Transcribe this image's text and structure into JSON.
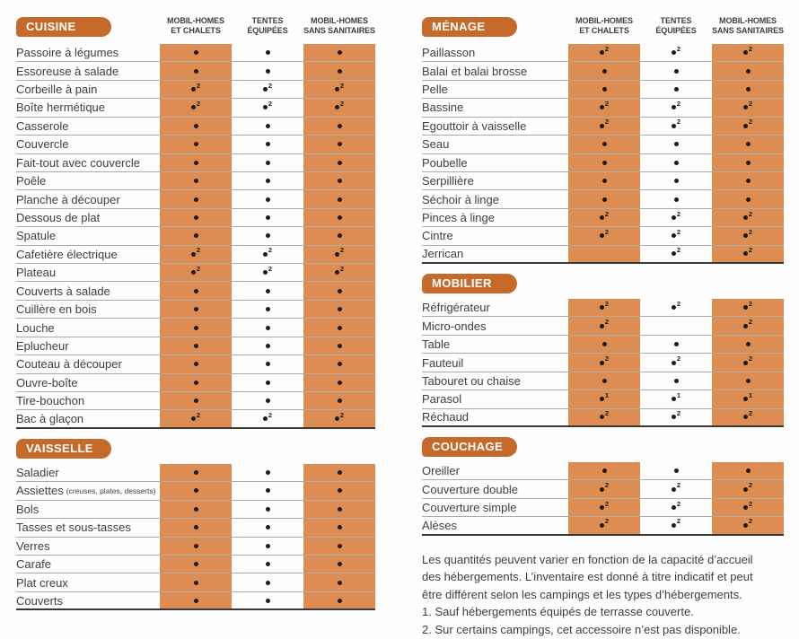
{
  "colors": {
    "pill": "#c56a2b",
    "band": "#dd8d51",
    "grid_line": "#aeaca9",
    "table_end_line": "#3a3834",
    "text": "#3f3e3c",
    "dot": "#1d1b19"
  },
  "symbols": {
    "d": "•",
    "d1": "•¹",
    "d2": "•²",
    "": ""
  },
  "column_headers": [
    {
      "lines": [
        "MOBIL-HOMES",
        "ET CHALETS"
      ]
    },
    {
      "lines": [
        "TENTES",
        "ÉQUIPÉES"
      ]
    },
    {
      "lines": [
        "MOBIL-HOMES",
        "SANS SANITAIRES"
      ]
    }
  ],
  "sections": [
    {
      "id": "cuisine",
      "title": "CUISINE",
      "panel": "left",
      "show_column_headers": true,
      "rows": [
        {
          "label": "Passoire à légumes",
          "cells": [
            "d",
            "d",
            "d"
          ]
        },
        {
          "label": "Essoreuse à salade",
          "cells": [
            "d",
            "d",
            "d"
          ]
        },
        {
          "label": "Corbeille à pain",
          "cells": [
            "d2",
            "d2",
            "d2"
          ]
        },
        {
          "label": "Boîte hermétique",
          "cells": [
            "d2",
            "d2",
            "d2"
          ]
        },
        {
          "label": "Casserole",
          "cells": [
            "d",
            "d",
            "d"
          ]
        },
        {
          "label": "Couvercle",
          "cells": [
            "d",
            "d",
            "d"
          ]
        },
        {
          "label": "Fait-tout avec couvercle",
          "cells": [
            "d",
            "d",
            "d"
          ]
        },
        {
          "label": "Poêle",
          "cells": [
            "d",
            "d",
            "d"
          ]
        },
        {
          "label": "Planche à découper",
          "cells": [
            "d",
            "d",
            "d"
          ]
        },
        {
          "label": "Dessous de plat",
          "cells": [
            "d",
            "d",
            "d"
          ]
        },
        {
          "label": "Spatule",
          "cells": [
            "d",
            "d",
            "d"
          ]
        },
        {
          "label": "Cafetière électrique",
          "cells": [
            "d2",
            "d2",
            "d2"
          ]
        },
        {
          "label": "Plateau",
          "cells": [
            "d2",
            "d2",
            "d2"
          ]
        },
        {
          "label": "Couverts à salade",
          "cells": [
            "d",
            "d",
            "d"
          ]
        },
        {
          "label": "Cuillère en bois",
          "cells": [
            "d",
            "d",
            "d"
          ]
        },
        {
          "label": "Louche",
          "cells": [
            "d",
            "d",
            "d"
          ]
        },
        {
          "label": "Eplucheur",
          "cells": [
            "d",
            "d",
            "d"
          ]
        },
        {
          "label": "Couteau à découper",
          "cells": [
            "d",
            "d",
            "d"
          ]
        },
        {
          "label": "Ouvre-boîte",
          "cells": [
            "d",
            "d",
            "d"
          ]
        },
        {
          "label": "Tire-bouchon",
          "cells": [
            "d",
            "d",
            "d"
          ]
        },
        {
          "label": "Bac à glaçon",
          "cells": [
            "d2",
            "d2",
            "d2"
          ]
        }
      ]
    },
    {
      "id": "vaisselle",
      "title": "VAISSELLE",
      "panel": "left",
      "show_column_headers": false,
      "rows": [
        {
          "label": "Saladier",
          "cells": [
            "d",
            "d",
            "d"
          ]
        },
        {
          "label": "Assiettes",
          "label_small": "(creuses, plates, desserts)",
          "cells": [
            "d",
            "d",
            "d"
          ]
        },
        {
          "label": "Bols",
          "cells": [
            "d",
            "d",
            "d"
          ]
        },
        {
          "label": "Tasses et sous-tasses",
          "cells": [
            "d",
            "d",
            "d"
          ]
        },
        {
          "label": "Verres",
          "cells": [
            "d",
            "d",
            "d"
          ]
        },
        {
          "label": "Carafe",
          "cells": [
            "d",
            "d",
            "d"
          ]
        },
        {
          "label": "Plat creux",
          "cells": [
            "d",
            "d",
            "d"
          ]
        },
        {
          "label": "Couverts",
          "cells": [
            "d",
            "d",
            "d"
          ]
        }
      ]
    },
    {
      "id": "menage",
      "title": "MÉNAGE",
      "panel": "right",
      "show_column_headers": true,
      "rows": [
        {
          "label": "Paillasson",
          "cells": [
            "d2",
            "d2",
            "d2"
          ]
        },
        {
          "label": "Balai et balai brosse",
          "cells": [
            "d",
            "d",
            "d"
          ]
        },
        {
          "label": "Pelle",
          "cells": [
            "d",
            "d",
            "d"
          ]
        },
        {
          "label": "Bassine",
          "cells": [
            "d2",
            "d2",
            "d2"
          ]
        },
        {
          "label": "Egouttoir à vaisselle",
          "cells": [
            "d2",
            "d2",
            "d2"
          ]
        },
        {
          "label": "Seau",
          "cells": [
            "d",
            "d",
            "d"
          ]
        },
        {
          "label": "Poubelle",
          "cells": [
            "d",
            "d",
            "d"
          ]
        },
        {
          "label": "Serpillière",
          "cells": [
            "d",
            "d",
            "d"
          ]
        },
        {
          "label": "Séchoir à linge",
          "cells": [
            "d",
            "d",
            "d"
          ]
        },
        {
          "label": "Pinces à linge",
          "cells": [
            "d2",
            "d2",
            "d2"
          ]
        },
        {
          "label": "Cintre",
          "cells": [
            "d2",
            "d2",
            "d2"
          ]
        },
        {
          "label": "Jerrican",
          "cells": [
            "",
            "d2",
            "d2"
          ]
        }
      ]
    },
    {
      "id": "mobilier",
      "title": "MOBILIER",
      "panel": "right",
      "show_column_headers": false,
      "rows": [
        {
          "label": "Réfrigérateur",
          "cells": [
            "d2",
            "d2",
            "d2"
          ]
        },
        {
          "label": "Micro-ondes",
          "cells": [
            "d2",
            "",
            "d2"
          ]
        },
        {
          "label": "Table",
          "cells": [
            "d",
            "d",
            "d"
          ]
        },
        {
          "label": "Fauteuil",
          "cells": [
            "d2",
            "d2",
            "d2"
          ]
        },
        {
          "label": "Tabouret ou chaise",
          "cells": [
            "d",
            "d",
            "d"
          ]
        },
        {
          "label": "Parasol",
          "cells": [
            "d1",
            "d1",
            "d1"
          ]
        },
        {
          "label": "Réchaud",
          "cells": [
            "d2",
            "d2",
            "d2"
          ]
        }
      ]
    },
    {
      "id": "couchage",
      "title": "COUCHAGE",
      "panel": "right",
      "show_column_headers": false,
      "rows": [
        {
          "label": "Oreiller",
          "cells": [
            "d",
            "d",
            "d"
          ]
        },
        {
          "label": "Couverture double",
          "cells": [
            "d2",
            "d2",
            "d2"
          ]
        },
        {
          "label": "Couverture simple",
          "cells": [
            "d2",
            "d2",
            "d2"
          ]
        },
        {
          "label": "Alèses",
          "cells": [
            "d2",
            "d2",
            "d2"
          ]
        }
      ]
    }
  ],
  "footer": {
    "text": "Les quantités peuvent varier en fonction de la capacité d’accueil\ndes hébergements. L’inventaire est donné à titre indicatif et peut\nêtre différent selon les campings et les types d’hébergements.\n1. Sauf hébergements équipés de terrasse couverte.\n2. Sur certains campings, cet accessoire n’est pas disponible."
  }
}
